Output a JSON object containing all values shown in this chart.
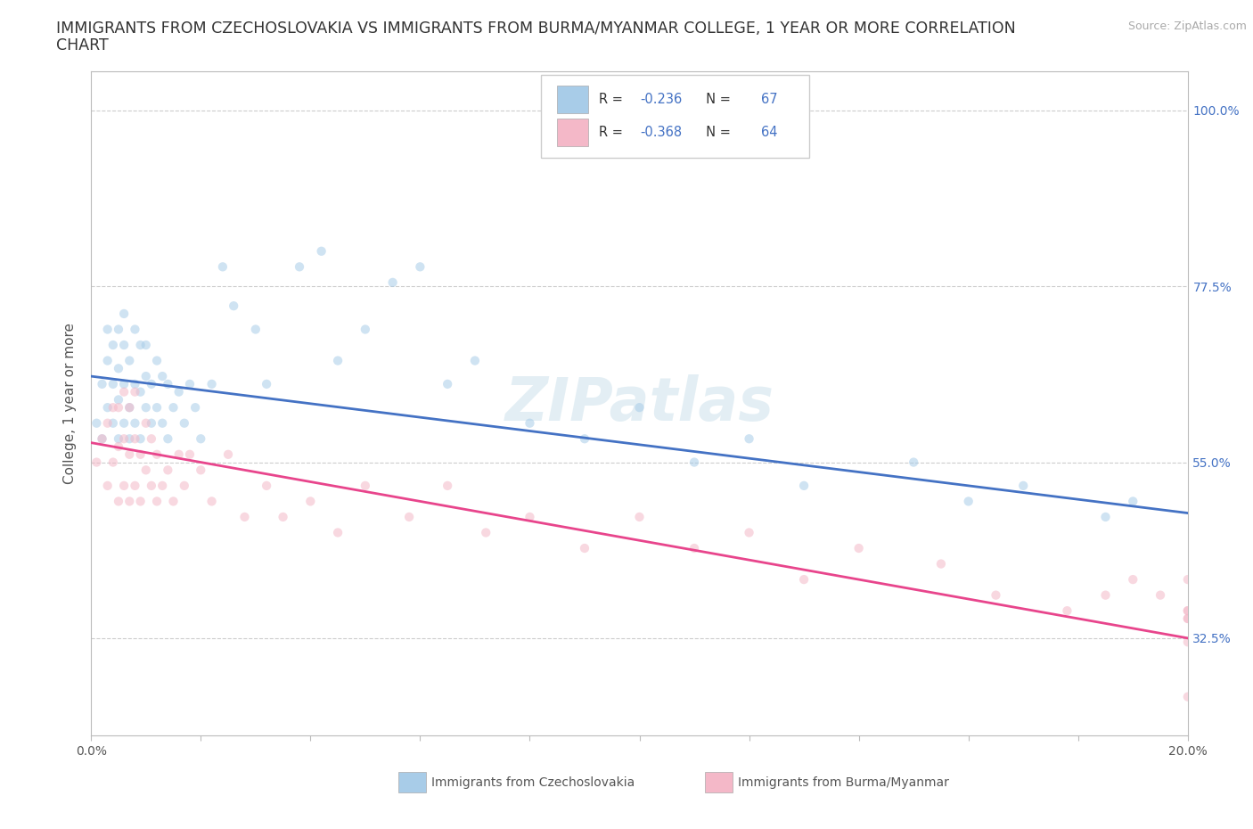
{
  "title_line1": "IMMIGRANTS FROM CZECHOSLOVAKIA VS IMMIGRANTS FROM BURMA/MYANMAR COLLEGE, 1 YEAR OR MORE CORRELATION",
  "title_line2": "CHART",
  "source_text": "Source: ZipAtlas.com",
  "ylabel": "College, 1 year or more",
  "xlim": [
    0.0,
    0.2
  ],
  "ylim": [
    0.2,
    1.05
  ],
  "ytick_vals": [
    1.0,
    0.775,
    0.55,
    0.325
  ],
  "ytick_labels": [
    "100.0%",
    "77.5%",
    "55.0%",
    "32.5%"
  ],
  "blue_color": "#a8cce8",
  "pink_color": "#f4b8c8",
  "blue_line_color": "#4472c4",
  "pink_line_color": "#e8458c",
  "watermark": "ZIPatlas",
  "legend_R_blue": "-0.236",
  "legend_N_blue": "67",
  "legend_R_pink": "-0.368",
  "legend_N_pink": "64",
  "blue_line_x0": 0.0,
  "blue_line_y0": 0.66,
  "blue_line_x1": 0.2,
  "blue_line_y1": 0.485,
  "pink_line_x0": 0.0,
  "pink_line_y0": 0.575,
  "pink_line_x1": 0.2,
  "pink_line_y1": 0.325,
  "background_color": "#ffffff",
  "grid_color": "#cccccc",
  "title_fontsize": 12.5,
  "axis_label_fontsize": 11,
  "tick_fontsize": 10,
  "dot_size": 55,
  "dot_alpha": 0.55,
  "blue_x": [
    0.001,
    0.002,
    0.002,
    0.003,
    0.003,
    0.003,
    0.004,
    0.004,
    0.004,
    0.005,
    0.005,
    0.005,
    0.005,
    0.006,
    0.006,
    0.006,
    0.006,
    0.007,
    0.007,
    0.007,
    0.008,
    0.008,
    0.008,
    0.009,
    0.009,
    0.009,
    0.01,
    0.01,
    0.01,
    0.011,
    0.011,
    0.012,
    0.012,
    0.013,
    0.013,
    0.014,
    0.014,
    0.015,
    0.016,
    0.017,
    0.018,
    0.019,
    0.02,
    0.022,
    0.024,
    0.026,
    0.03,
    0.032,
    0.038,
    0.042,
    0.045,
    0.05,
    0.055,
    0.06,
    0.065,
    0.07,
    0.08,
    0.09,
    0.1,
    0.11,
    0.12,
    0.13,
    0.15,
    0.16,
    0.17,
    0.185,
    0.19
  ],
  "blue_y": [
    0.6,
    0.58,
    0.65,
    0.62,
    0.68,
    0.72,
    0.6,
    0.65,
    0.7,
    0.58,
    0.63,
    0.67,
    0.72,
    0.6,
    0.65,
    0.7,
    0.74,
    0.58,
    0.62,
    0.68,
    0.6,
    0.65,
    0.72,
    0.58,
    0.64,
    0.7,
    0.62,
    0.66,
    0.7,
    0.6,
    0.65,
    0.62,
    0.68,
    0.6,
    0.66,
    0.58,
    0.65,
    0.62,
    0.64,
    0.6,
    0.65,
    0.62,
    0.58,
    0.65,
    0.8,
    0.75,
    0.72,
    0.65,
    0.8,
    0.82,
    0.68,
    0.72,
    0.78,
    0.8,
    0.65,
    0.68,
    0.6,
    0.58,
    0.62,
    0.55,
    0.58,
    0.52,
    0.55,
    0.5,
    0.52,
    0.48,
    0.5
  ],
  "pink_x": [
    0.001,
    0.002,
    0.003,
    0.003,
    0.004,
    0.004,
    0.005,
    0.005,
    0.005,
    0.006,
    0.006,
    0.006,
    0.007,
    0.007,
    0.007,
    0.008,
    0.008,
    0.008,
    0.009,
    0.009,
    0.01,
    0.01,
    0.011,
    0.011,
    0.012,
    0.012,
    0.013,
    0.014,
    0.015,
    0.016,
    0.017,
    0.018,
    0.02,
    0.022,
    0.025,
    0.028,
    0.032,
    0.035,
    0.04,
    0.045,
    0.05,
    0.058,
    0.065,
    0.072,
    0.08,
    0.09,
    0.1,
    0.11,
    0.12,
    0.13,
    0.14,
    0.155,
    0.165,
    0.178,
    0.185,
    0.19,
    0.195,
    0.2,
    0.2,
    0.2,
    0.2,
    0.2,
    0.2,
    0.2
  ],
  "pink_y": [
    0.55,
    0.58,
    0.52,
    0.6,
    0.55,
    0.62,
    0.5,
    0.57,
    0.62,
    0.52,
    0.58,
    0.64,
    0.5,
    0.56,
    0.62,
    0.52,
    0.58,
    0.64,
    0.5,
    0.56,
    0.54,
    0.6,
    0.52,
    0.58,
    0.5,
    0.56,
    0.52,
    0.54,
    0.5,
    0.56,
    0.52,
    0.56,
    0.54,
    0.5,
    0.56,
    0.48,
    0.52,
    0.48,
    0.5,
    0.46,
    0.52,
    0.48,
    0.52,
    0.46,
    0.48,
    0.44,
    0.48,
    0.44,
    0.46,
    0.4,
    0.44,
    0.42,
    0.38,
    0.36,
    0.38,
    0.4,
    0.38,
    0.35,
    0.4,
    0.36,
    0.32,
    0.36,
    0.35,
    0.25
  ]
}
